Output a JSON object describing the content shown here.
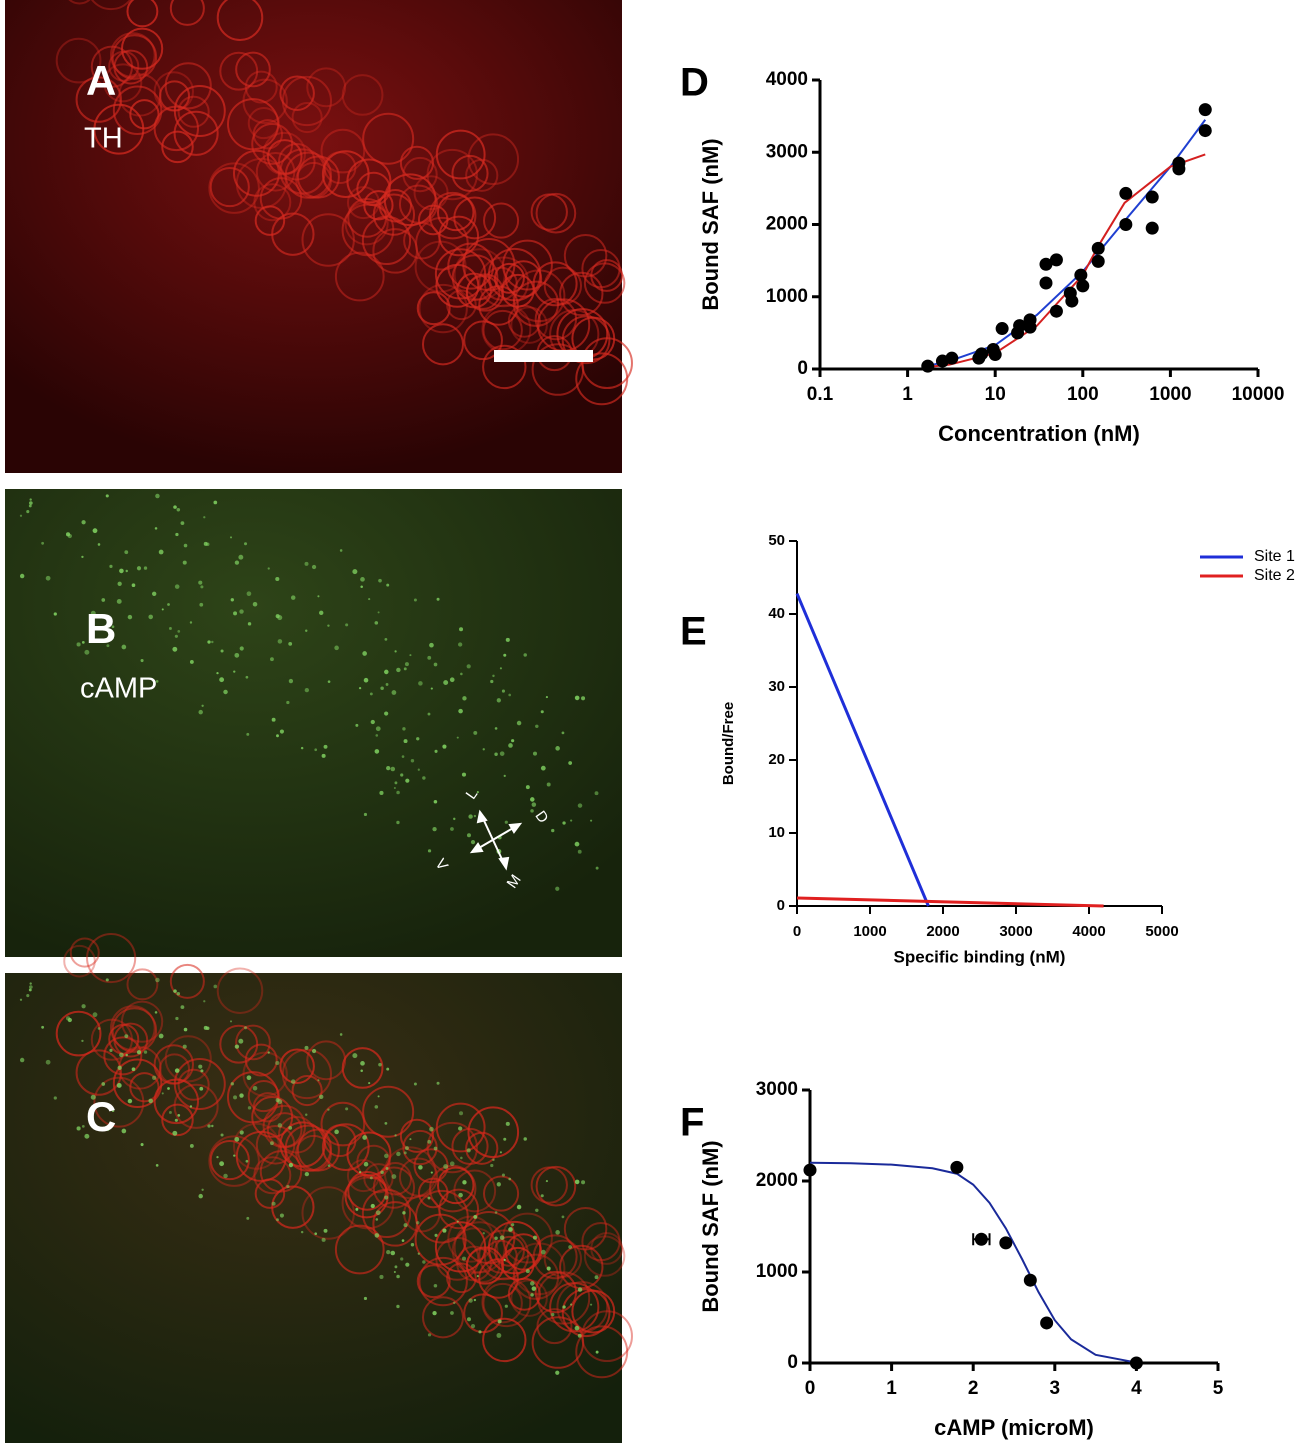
{
  "panels": [
    {
      "label": "A",
      "stain": "TH"
    },
    {
      "label": "B",
      "stain": "cAMP",
      "orientation": [
        "L",
        "D",
        "V",
        "M"
      ]
    },
    {
      "label": "C"
    }
  ],
  "chart_data": [
    {
      "type": "scatter",
      "panel": "D",
      "xlabel": "Concentration (nM)",
      "ylabel": "Bound SAF (nM)",
      "xscale": "log",
      "xlim": [
        0.1,
        10000
      ],
      "xticks": [
        0.1,
        1,
        10,
        100,
        1000,
        10000
      ],
      "ylim": [
        0,
        4000
      ],
      "yticks": [
        0,
        1000,
        2000,
        3000,
        4000
      ],
      "color": "#000000",
      "x": [
        1.7,
        2.5,
        3.2,
        6.5,
        7,
        9.5,
        10,
        12,
        18,
        19,
        25,
        25,
        38,
        38,
        50,
        50,
        72,
        75,
        95,
        100,
        150,
        150,
        310,
        310,
        620,
        620,
        1250,
        1250,
        2500,
        2500
      ],
      "values": [
        40,
        110,
        150,
        150,
        210,
        270,
        200,
        560,
        500,
        600,
        580,
        680,
        1450,
        1190,
        1510,
        800,
        1050,
        940,
        1300,
        1150,
        1670,
        1490,
        2430,
        2000,
        2380,
        1950,
        2850,
        2770,
        3590,
        3300
      ],
      "curves": [
        {
          "color": "#1f3fd1",
          "x": [
            1.5,
            3,
            10,
            30,
            100,
            300,
            1000,
            2500
          ],
          "values": [
            30,
            110,
            330,
            750,
            1350,
            2050,
            2800,
            3450
          ]
        },
        {
          "color": "#d42020",
          "x": [
            1.5,
            3,
            10,
            30,
            100,
            150,
            300,
            1000,
            2500
          ],
          "values": [
            20,
            60,
            220,
            600,
            1300,
            1700,
            2300,
            2800,
            2970
          ]
        }
      ]
    },
    {
      "type": "line",
      "panel": "E",
      "xlabel": "Specific binding (nM)",
      "ylabel": "Bound/Free",
      "xlim": [
        0,
        5000
      ],
      "xticks": [
        0,
        1000,
        2000,
        3000,
        4000,
        5000
      ],
      "ylim": [
        0,
        50
      ],
      "yticks": [
        0,
        10,
        20,
        30,
        40,
        50
      ],
      "legend": "top-right",
      "series": [
        {
          "name": "Site 1",
          "color": "#1f2fd8",
          "x": [
            0,
            1800
          ],
          "values": [
            42.8,
            0
          ]
        },
        {
          "name": "Site 2",
          "color": "#e02020",
          "x": [
            0,
            4200
          ],
          "values": [
            1.1,
            0
          ]
        }
      ]
    },
    {
      "type": "scatter",
      "panel": "F",
      "xlabel": "cAMP (microM)",
      "ylabel": "Bound SAF (nM)",
      "xlim": [
        0,
        5
      ],
      "xticks": [
        0,
        1,
        2,
        3,
        4,
        5
      ],
      "ylim": [
        0,
        3000
      ],
      "yticks": [
        0,
        1000,
        2000,
        3000
      ],
      "color": "#000000",
      "x": [
        0,
        1.8,
        2.1,
        2.4,
        2.7,
        2.9,
        4
      ],
      "values": [
        2120,
        2150,
        1360,
        1320,
        910,
        440,
        0
      ],
      "xerrors": [
        null,
        null,
        0.1,
        null,
        null,
        null,
        null
      ],
      "curves": [
        {
          "color": "#1a2a9a",
          "x": [
            0,
            0.5,
            1,
            1.5,
            1.8,
            2,
            2.2,
            2.4,
            2.6,
            2.8,
            3,
            3.2,
            3.5,
            4
          ],
          "values": [
            2200,
            2195,
            2180,
            2140,
            2080,
            1960,
            1760,
            1480,
            1140,
            780,
            470,
            260,
            90,
            5
          ]
        }
      ]
    }
  ]
}
